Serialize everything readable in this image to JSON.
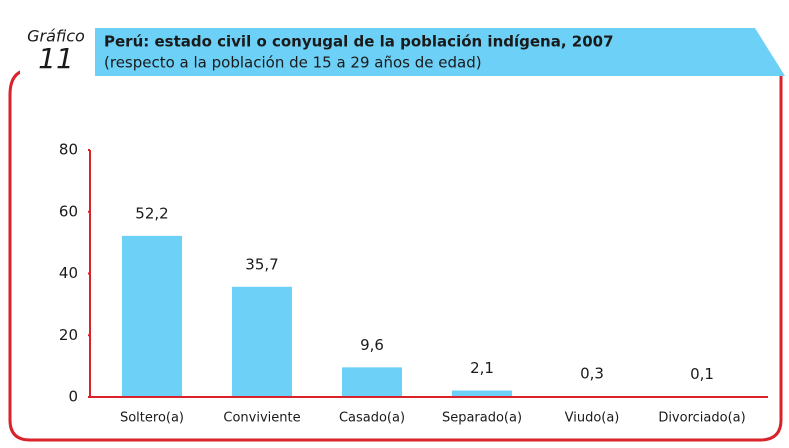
{
  "chart_data": {
    "type": "bar",
    "label": "Gráfico",
    "number": "11",
    "title": "Perú: estado civil o conyugal de la población indígena, 2007",
    "subtitle": "(respecto a la población de 15 a 29 años de edad)",
    "categories": [
      "Soltero(a)",
      "Conviviente",
      "Casado(a)",
      "Separado(a)",
      "Viudo(a)",
      "Divorciado(a)"
    ],
    "values": [
      52.2,
      35.7,
      9.6,
      2.1,
      0.3,
      0.1
    ],
    "value_labels": [
      "52,2",
      "35,7",
      "9,6",
      "2,1",
      "0,3",
      "0,1"
    ],
    "color": "#6dd0f6",
    "ylim": [
      0,
      80
    ],
    "yticks": [
      0,
      20,
      40,
      60,
      80
    ]
  }
}
